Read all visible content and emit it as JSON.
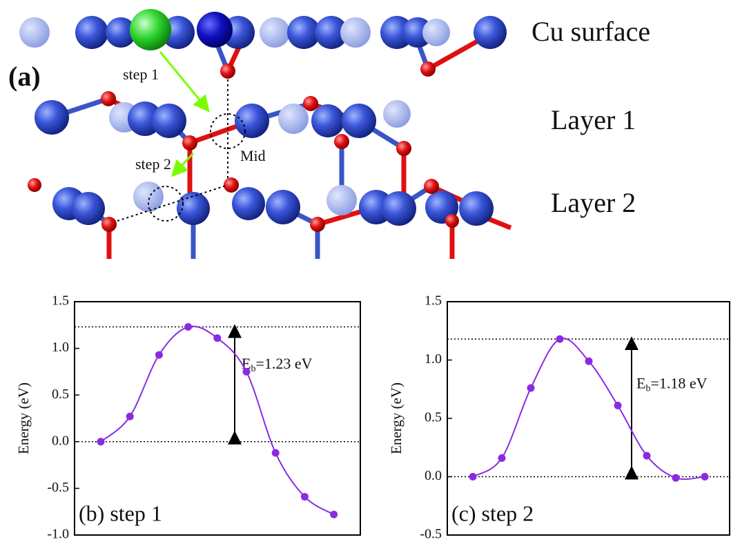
{
  "diagram": {
    "panel_label": "(a)",
    "labels": [
      "Cu surface",
      "Layer 1",
      "Layer 2"
    ],
    "step1": "step 1",
    "step2": "step 2",
    "mid": "Mid"
  },
  "chart_data": [
    {
      "type": "line",
      "panel_label": "(b) step 1",
      "y_label": "Energy (eV)",
      "color": "#8a2be2",
      "values": [
        0,
        0.27,
        0.93,
        1.23,
        1.11,
        0.75,
        -0.12,
        -0.59,
        -0.78
      ],
      "ylim": [
        -1.0,
        1.5
      ],
      "yticks": [
        {
          "value": -1,
          "label": "-1.0"
        },
        -0.5,
        {
          "value": 0,
          "label": "0.0"
        },
        0.5,
        {
          "value": 1,
          "label": "1.0"
        },
        1.5
      ],
      "reference_lines": [
        0,
        1.23
      ],
      "annotation": {
        "symbol": "E",
        "subscript": "b",
        "text": "=1.23 eV"
      }
    },
    {
      "type": "line",
      "panel_label": "(c) step 2",
      "y_label": "Energy (eV)",
      "color": "#8a2be2",
      "values": [
        0,
        0.16,
        0.76,
        1.18,
        0.99,
        0.61,
        0.18,
        -0.01,
        0.0
      ],
      "ylim": [
        -0.5,
        1.5
      ],
      "yticks": [
        -0.5,
        {
          "value": 0,
          "label": "0.0"
        },
        0.5,
        {
          "value": 1,
          "label": "1.0"
        },
        1.5
      ],
      "reference_lines": [
        0,
        1.18
      ],
      "annotation": {
        "symbol": "E",
        "subscript": "b",
        "text": "=1.18 eV"
      }
    }
  ]
}
